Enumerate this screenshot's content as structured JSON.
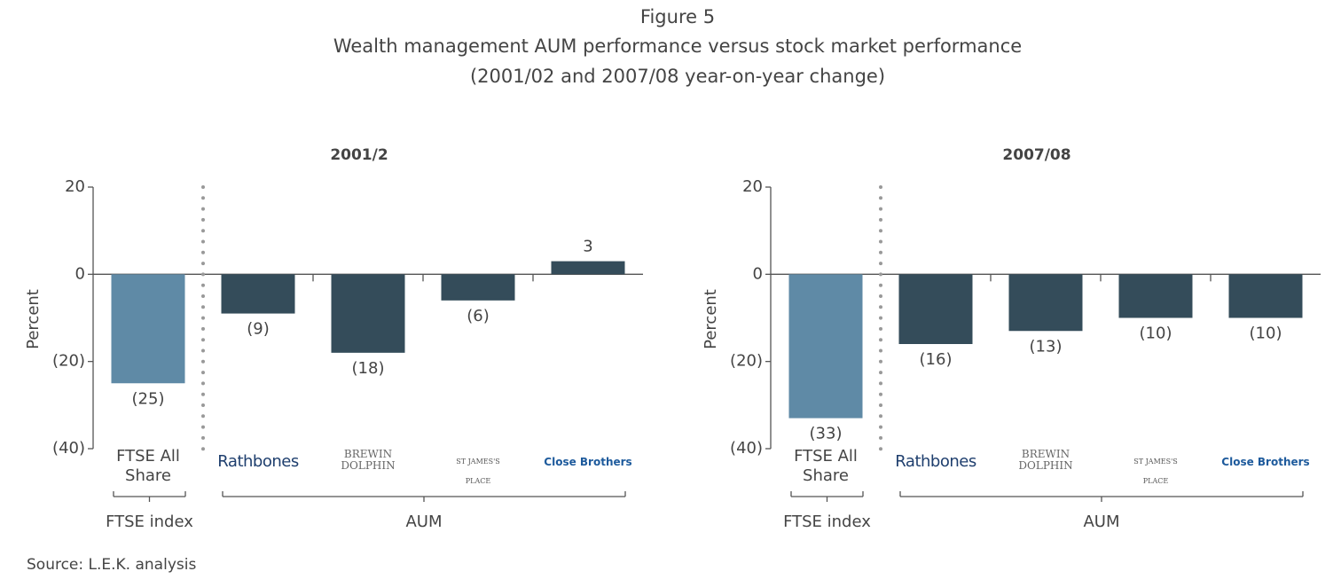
{
  "figure_label": "Figure 5",
  "title": "Wealth management AUM performance versus stock market performance",
  "subtitle": "(2001/02 and 2007/08 year-on-year change)",
  "source": "Source: L.E.K. analysis",
  "chart_data": [
    {
      "type": "bar",
      "title": "2001/2",
      "ylabel": "Percent",
      "categories": [
        "FTSE All Share",
        "Rathbones",
        "BREWIN DOLPHIN",
        "ST JAMES'S PLACE",
        "Close Brothers"
      ],
      "values": [
        -25,
        -9,
        -18,
        -6,
        3
      ],
      "value_labels": [
        "(25)",
        "(9)",
        "(18)",
        "(6)",
        "3"
      ],
      "colors": [
        "#5f8aa6",
        "#344c5a",
        "#344c5a",
        "#344c5a",
        "#344c5a"
      ],
      "groups": [
        {
          "label": "FTSE index",
          "count": 1
        },
        {
          "label": "AUM",
          "count": 4
        }
      ],
      "ylim": [
        -40,
        20
      ],
      "yticks": [
        {
          "value": -40,
          "label": "(40)"
        },
        {
          "value": -20,
          "label": "(20)"
        },
        0,
        20
      ]
    },
    {
      "type": "bar",
      "title": "2007/08",
      "ylabel": "Percent",
      "categories": [
        "FTSE All Share",
        "Rathbones",
        "BREWIN DOLPHIN",
        "ST JAMES'S PLACE",
        "Close Brothers"
      ],
      "values": [
        -33,
        -16,
        -13,
        -10,
        -10
      ],
      "value_labels": [
        "(33)",
        "(16)",
        "(13)",
        "(10)",
        "(10)"
      ],
      "colors": [
        "#5f8aa6",
        "#344c5a",
        "#344c5a",
        "#344c5a",
        "#344c5a"
      ],
      "groups": [
        {
          "label": "FTSE index",
          "count": 1
        },
        {
          "label": "AUM",
          "count": 4
        }
      ],
      "ylim": [
        -40,
        20
      ],
      "yticks": [
        {
          "value": -40,
          "label": "(40)"
        },
        {
          "value": -20,
          "label": "(20)"
        },
        0,
        20
      ]
    }
  ]
}
